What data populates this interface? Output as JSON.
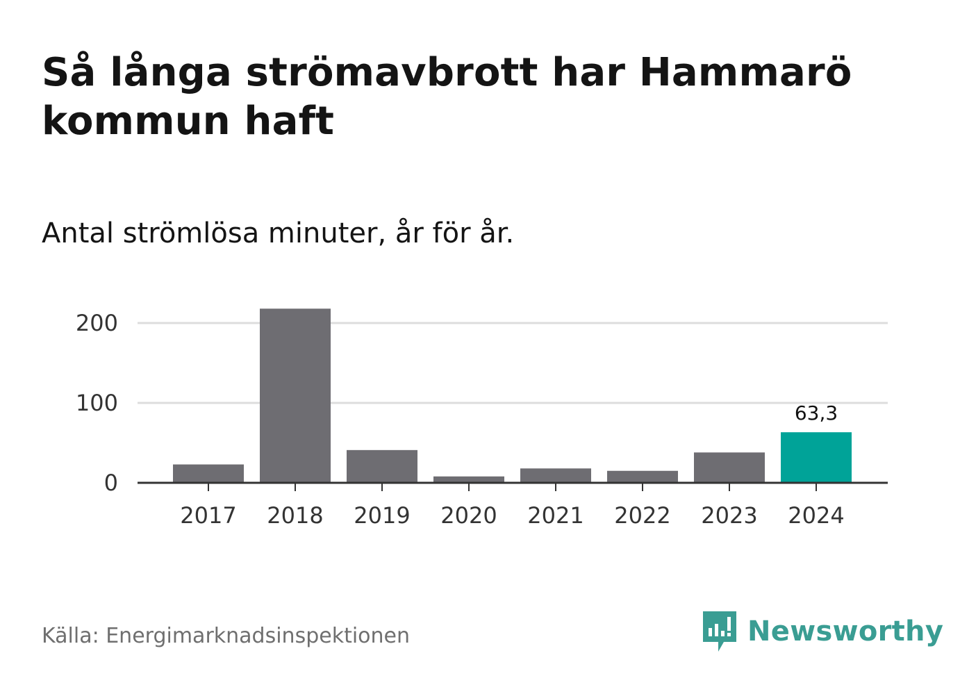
{
  "title": "Så långa strömavbrott har Hammarö kommun haft",
  "subtitle": "Antal strömlösa minuter, år för år.",
  "source": "Källa: Energimarknadsinspektionen",
  "brand": {
    "name": "Newsworthy",
    "icon": "newsworthy-logo-icon",
    "color": "#3a9d93"
  },
  "colors": {
    "bar": "#6e6d72",
    "highlight": "#00a398",
    "grid": "#dddddd",
    "axis": "#333333"
  },
  "chart_data": {
    "type": "bar",
    "title": "Antal strömlösa minuter, år för år.",
    "categories": [
      "2017",
      "2018",
      "2019",
      "2020",
      "2021",
      "2022",
      "2023",
      "2024"
    ],
    "values": [
      23,
      218,
      41,
      8,
      18,
      15,
      38,
      63.3
    ],
    "highlight_index": 7,
    "data_labels": {
      "7": "63,3"
    },
    "yticks": [
      0,
      100,
      200
    ],
    "ytick_labels": [
      "0",
      "100",
      "200"
    ],
    "ylim": [
      0,
      230
    ],
    "xlabel": "",
    "ylabel": "",
    "grid": true
  }
}
